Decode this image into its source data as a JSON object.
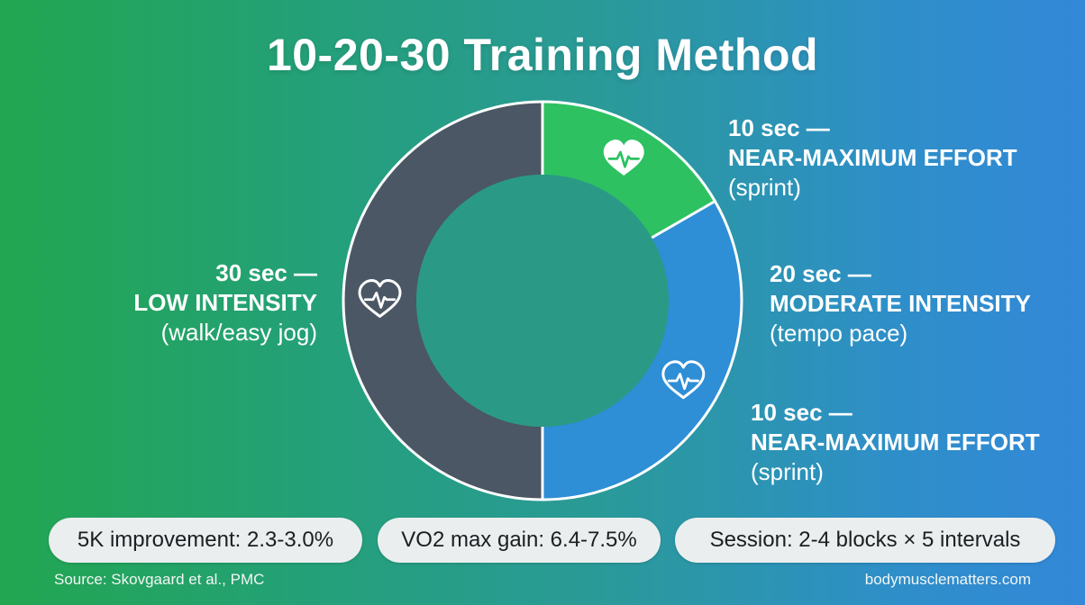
{
  "title": "10-20-30 Training Method",
  "chart_data": {
    "type": "pie",
    "variant": "donut",
    "start": "top",
    "direction": "clockwise",
    "segments": [
      {
        "duration": "10 sec —",
        "name": "NEAR-MAXIMUM EFFORT",
        "desc": "(sprint)",
        "seconds": 10,
        "color": "#2dc162",
        "icon": "heart-pulse-icon"
      },
      {
        "duration": "20 sec —",
        "name": "MODERATE INTENSITY",
        "desc": "(tempo pace)",
        "seconds": 20,
        "color": "#2e8ed6",
        "icon": "heart-pulse-icon"
      },
      {
        "duration": "30 sec —",
        "name": "LOW INTENSITY",
        "desc": "(walk/easy jog)",
        "seconds": 30,
        "color": "#4b5764",
        "icon": "heart-pulse-icon"
      }
    ],
    "extra_label": {
      "duration": "10 sec —",
      "name": "NEAR-MAXIMUM EFFORT",
      "desc": "(sprint)"
    },
    "center_color": "#2a9a86",
    "ring_stroke_color": "#ffffff"
  },
  "stats": [
    {
      "text": "5K improvement: 2.3-3.0%"
    },
    {
      "text": "VO2 max gain: 6.4-7.5%"
    },
    {
      "text": "Session: 2-4 blocks × 5 intervals"
    }
  ],
  "footer": {
    "source": "Source: Skovgaard et al., PMC",
    "site": "bodymusclematters.com"
  }
}
